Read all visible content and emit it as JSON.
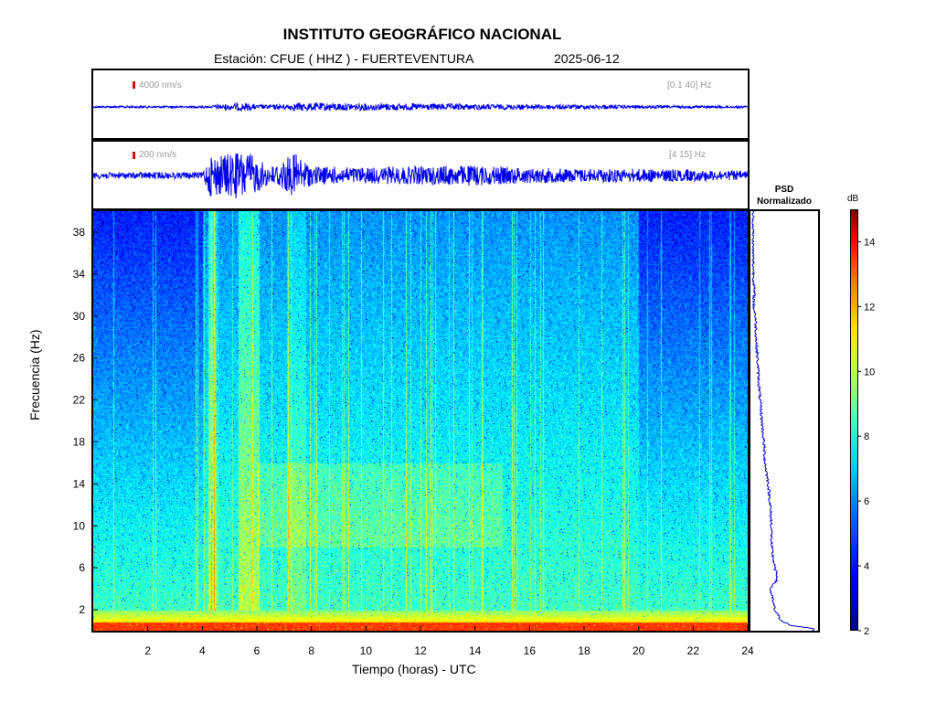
{
  "chart_data": [
    {
      "type": "line",
      "title": "INSTITUTO GEOGRÁFICO NACIONAL",
      "subtitle_station": "Estación:  CFUE ( HHZ ) - FUERTEVENTURA",
      "subtitle_date": "2025-06-12",
      "panel": "waveform-broadband",
      "scale_label": "4000 nm/s",
      "band_label": "[0.1 40] Hz",
      "x_range": [
        0,
        24
      ],
      "series": [
        {
          "x": [
            0,
            4.3,
            4.5,
            5.3,
            5.6,
            6.0,
            7.3,
            7.4,
            24
          ],
          "y": [
            0,
            0,
            0.3,
            0.5,
            0.6,
            0.2,
            0.4,
            0.6,
            0
          ]
        }
      ]
    },
    {
      "type": "line",
      "panel": "waveform-filtered",
      "scale_label": "200 nm/s",
      "band_label": "[4 15] Hz",
      "x_range": [
        0,
        24
      ],
      "series": [
        {
          "x": [
            0,
            4.0,
            4.3,
            4.5,
            5.0,
            5.5,
            5.7,
            6.0,
            6.5,
            7.2,
            7.5,
            8.0,
            10,
            12,
            14,
            16,
            18,
            20,
            22,
            24
          ],
          "y": [
            0.1,
            0.1,
            0.9,
            0.8,
            0.9,
            1.0,
            0.95,
            0.7,
            0.3,
            0.8,
            0.9,
            0.35,
            0.3,
            0.35,
            0.4,
            0.28,
            0.25,
            0.25,
            0.2,
            0.15
          ]
        }
      ]
    },
    {
      "type": "heatmap",
      "panel": "spectrogram",
      "xlabel": "Tiempo (horas) - UTC",
      "ylabel": "Frecuencia  (Hz)",
      "x_ticks": [
        2,
        4,
        6,
        8,
        10,
        12,
        14,
        16,
        18,
        20,
        22,
        24
      ],
      "y_ticks": [
        2,
        6,
        10,
        14,
        18,
        22,
        26,
        30,
        34,
        38
      ],
      "xlim": [
        0,
        24
      ],
      "ylim": [
        0,
        40
      ],
      "colorscale": "jet"
    },
    {
      "type": "line",
      "panel": "psd",
      "title": "PSD\nNormalizado",
      "title_line1": "PSD",
      "title_line2": "Normalizado",
      "ylim": [
        0,
        40
      ],
      "series": [
        {
          "freq": [
            0.2,
            0.5,
            1,
            2,
            4,
            5,
            6,
            8,
            10,
            12,
            14,
            16,
            18,
            20,
            22,
            24,
            26,
            28,
            30,
            31,
            32,
            34,
            36,
            38,
            40
          ],
          "value": [
            0.95,
            0.6,
            0.45,
            0.35,
            0.28,
            0.4,
            0.35,
            0.3,
            0.3,
            0.28,
            0.25,
            0.2,
            0.18,
            0.15,
            0.12,
            0.1,
            0.08,
            0.06,
            0.05,
            0.02,
            0.03,
            0.02,
            0.01,
            0.01,
            0.01
          ]
        }
      ]
    },
    {
      "type": "heatmap",
      "panel": "colorbar",
      "unit_label": "dB",
      "ticks": [
        2,
        4,
        6,
        8,
        10,
        12,
        14
      ],
      "range": [
        2,
        15
      ]
    }
  ]
}
